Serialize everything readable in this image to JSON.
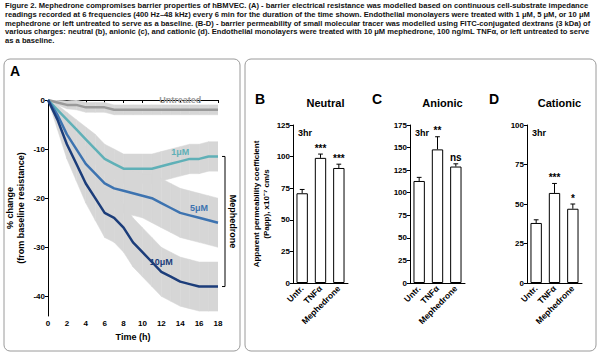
{
  "caption": "Figure 2. Mephedrone compromises barrier properties of hBMVEC. (A) - barrier electrical resistance was modelled based on continuous cell-substrate impedance readings recorded at 6 frequencies (400 Hz–48 kHz) every 6 min for the duration of the time shown. Endothelial monolayers were treated with 1 μM, 5 μM, or 10 μM mephedrone or left untreated to serve as a baseline. (B-D) - barrier permeability of small molecular tracer was modelled using FITC-conjugated dextrans (3 kDa) of various charges: neutral (b), anionic (c), and cationic (d). Endothelial monolayers were treated with 10 μM mephedrone, 100 ng/mL TNFα, or left untreated to serve as a baseline.",
  "chart_data": [
    {
      "type": "line",
      "panel_label": "A",
      "x_label": "Time (h)",
      "y_label": "% change\n(from baseline resistance)",
      "x": [
        0,
        1,
        2,
        3,
        4,
        5,
        6,
        7,
        8,
        9,
        10,
        11,
        12,
        13,
        14,
        15,
        16,
        17,
        18
      ],
      "xlim": [
        0,
        18
      ],
      "xticks": [
        0,
        2,
        4,
        6,
        8,
        10,
        12,
        14,
        16,
        18
      ],
      "ylim": [
        -44,
        0
      ],
      "yticks": [
        -40,
        -30,
        -20,
        -10,
        0
      ],
      "grid": false,
      "annotations": [
        "Mephedrone"
      ],
      "series": [
        {
          "name": "Untreated",
          "color": "#9a9a9a",
          "values": [
            0,
            -0.5,
            -1,
            -1,
            -1.5,
            -1.5,
            -1.5,
            -2,
            -2,
            -2,
            -2,
            -2,
            -2,
            -2,
            -2,
            -2,
            -2,
            -2,
            -2
          ],
          "error": [
            0,
            0.5,
            0.8,
            1,
            1,
            1,
            1,
            1,
            1,
            1,
            1,
            1,
            1,
            1,
            1,
            1,
            1,
            1,
            1
          ]
        },
        {
          "name": "1μM",
          "color": "#5fb0b7",
          "values": [
            0,
            -2,
            -4,
            -6,
            -8,
            -10,
            -12,
            -13,
            -14,
            -14,
            -14,
            -14,
            -13.5,
            -13,
            -12.5,
            -12,
            -12,
            -11.5,
            -11.5
          ],
          "error": [
            0,
            1,
            1.5,
            2,
            2.5,
            3,
            3,
            3,
            3,
            3,
            3,
            3,
            3,
            3,
            3,
            3,
            3,
            3,
            3
          ]
        },
        {
          "name": "5μM",
          "color": "#3d73b0",
          "values": [
            0,
            -3,
            -7,
            -10,
            -13,
            -15,
            -17,
            -18,
            -18.5,
            -19,
            -19.5,
            -20,
            -21,
            -22,
            -23,
            -23.5,
            -24,
            -24.5,
            -25
          ],
          "error": [
            0,
            1.5,
            2,
            3,
            3.5,
            4,
            4,
            4,
            4.5,
            4.5,
            4.5,
            5,
            5,
            5,
            5,
            5,
            5,
            5,
            5
          ]
        },
        {
          "name": "10μM",
          "color": "#1c3d7a",
          "values": [
            0,
            -4,
            -9,
            -13,
            -17,
            -20,
            -23,
            -24,
            -26,
            -29,
            -31,
            -33,
            -35,
            -36,
            -37,
            -37.5,
            -38,
            -38,
            -38
          ],
          "error": [
            0,
            2,
            3,
            3.5,
            4,
            4.5,
            5,
            5,
            5,
            5,
            5,
            5,
            5,
            5,
            5,
            5,
            5,
            5,
            5
          ]
        }
      ]
    },
    {
      "type": "bar",
      "panel_label": "B",
      "title": "Neutral",
      "annotations": [
        "3hr"
      ],
      "y_label": "Apparent permeability coefficient\n(Papp), x10⁻⁷ cm/s",
      "categories": [
        "Untr.",
        "TNFα",
        "Mephedrone"
      ],
      "values": [
        71,
        99,
        91
      ],
      "errors": [
        3,
        3,
        3
      ],
      "significance": [
        null,
        "***",
        "***"
      ],
      "colors": [
        "#ffffff",
        "#ffffff",
        "#ffffff"
      ],
      "ylim": [
        0,
        125
      ],
      "yticks": [
        0,
        25,
        50,
        75,
        100,
        125
      ],
      "grid": false
    },
    {
      "type": "bar",
      "panel_label": "C",
      "title": "Anionic",
      "annotations": [
        "3hr"
      ],
      "categories": [
        "Untr.",
        "TNFα",
        "Mephedrone"
      ],
      "values": [
        113,
        148,
        129
      ],
      "errors": [
        4,
        14,
        3
      ],
      "significance": [
        null,
        "**",
        "ns"
      ],
      "colors": [
        "#ffffff",
        "#ffffff",
        "#ffffff"
      ],
      "ylim": [
        0,
        175
      ],
      "yticks": [
        0,
        25,
        50,
        75,
        100,
        125,
        150,
        175
      ],
      "grid": false
    },
    {
      "type": "bar",
      "panel_label": "D",
      "title": "Cationic",
      "annotations": [
        "3hr"
      ],
      "categories": [
        "Untr.",
        "TNFα",
        "Mephedrone"
      ],
      "values": [
        38,
        57,
        47
      ],
      "errors": [
        2,
        6,
        3
      ],
      "significance": [
        null,
        "***",
        "*"
      ],
      "colors": [
        "#ffffff",
        "#ffffff",
        "#ffffff"
      ],
      "ylim": [
        0,
        100
      ],
      "yticks": [
        0,
        25,
        50,
        75,
        100
      ],
      "grid": false
    }
  ]
}
